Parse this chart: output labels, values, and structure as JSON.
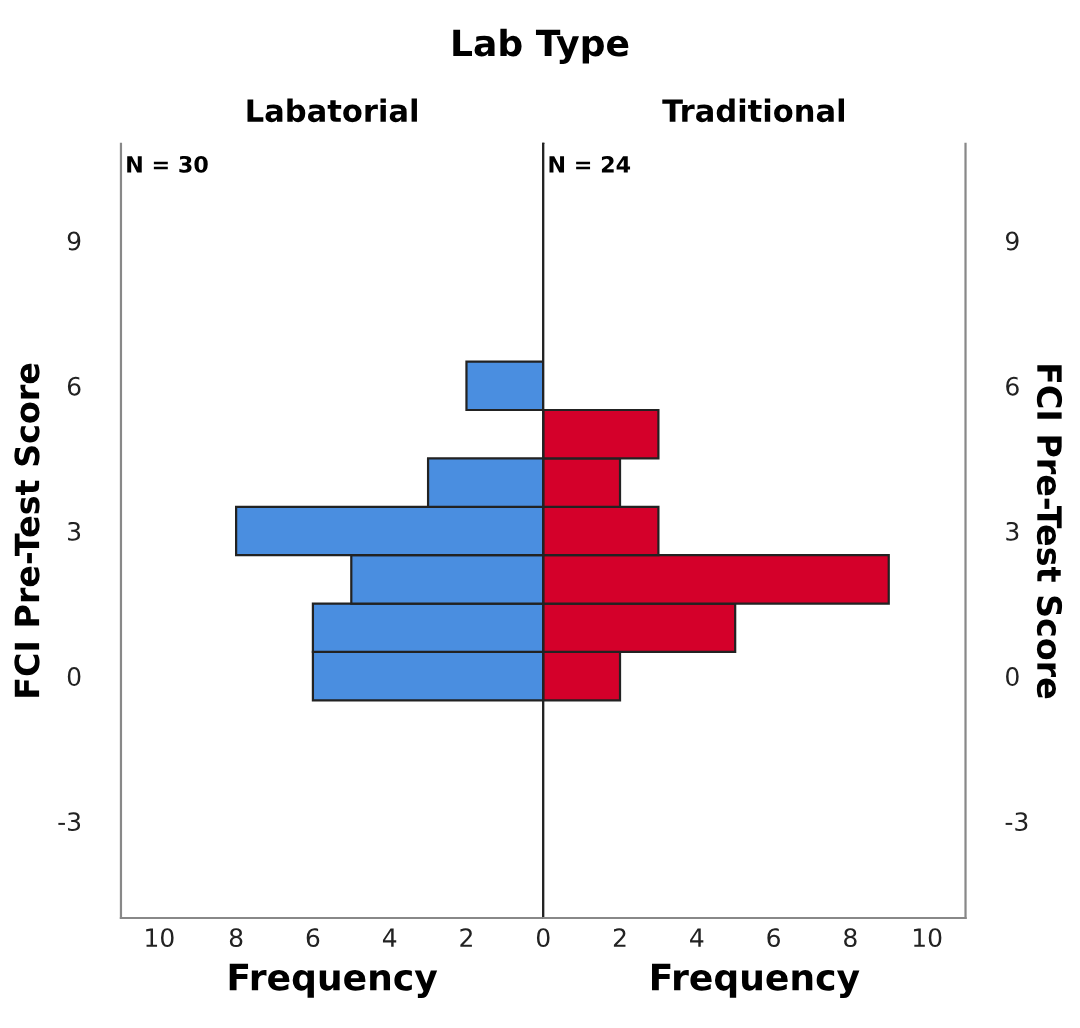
{
  "chart_data": [
    {
      "type": "histogram",
      "title": "Lab Type",
      "subtitle": "Labatorial",
      "xlabel": "Frequency",
      "ylabel": "FCI Pre-Test Score",
      "orientation": "horizontal",
      "bins": [
        -0.5,
        0.5,
        1.5,
        2.5,
        3.5,
        4.5,
        5.5,
        6.5
      ],
      "values": [
        6,
        6,
        5,
        8,
        3,
        null,
        2
      ],
      "color": "#4a8ee0",
      "xlim": [
        11,
        0
      ],
      "xticks": [
        10,
        8,
        6,
        4,
        2,
        {
          "value": 0,
          "label": null
        }
      ],
      "ylim": [
        -5,
        11
      ],
      "yticks": [
        -3,
        0,
        3,
        6,
        9
      ],
      "annotations": [
        "N = 30"
      ],
      "grid": false
    },
    {
      "type": "histogram",
      "subtitle": "Traditional",
      "xlabel": "Frequency",
      "ylabel": "FCI Pre-Test Score",
      "orientation": "horizontal",
      "bins": [
        -0.5,
        0.5,
        1.5,
        2.5,
        3.5,
        4.5,
        5.5,
        6.5
      ],
      "values": [
        2,
        5,
        9,
        3,
        2,
        3,
        null
      ],
      "color": "#d4002a",
      "xlim": [
        0,
        11
      ],
      "xticks": [
        0,
        2,
        4,
        6,
        8,
        10
      ],
      "ylim": [
        -5,
        11
      ],
      "yticks": [
        -3,
        0,
        3,
        6,
        9
      ],
      "annotations": [
        "N = 24"
      ],
      "grid": false
    }
  ]
}
